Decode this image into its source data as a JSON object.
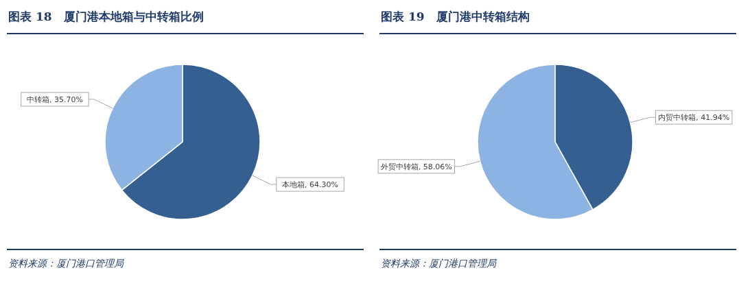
{
  "chart_data": [
    {
      "type": "pie",
      "title": "图表 18　厦门港本地箱与中转箱比例",
      "categories": [
        "本地箱",
        "中转箱"
      ],
      "values": [
        64.3,
        35.7
      ],
      "colors": [
        "#365f91",
        "#8db3e2"
      ],
      "value_labels": [
        "64.30%",
        "35.70%"
      ],
      "annotations": [
        "资料来源：厦门港口管理局"
      ]
    },
    {
      "type": "pie",
      "title": "图表 19　厦门港中转箱结构",
      "categories": [
        "内贸中转箱",
        "外贸中转箱"
      ],
      "values": [
        41.94,
        58.06
      ],
      "colors": [
        "#365f91",
        "#8db3e2"
      ],
      "value_labels": [
        "41.94%",
        "58.06%"
      ],
      "annotations": [
        "资料来源：厦门港口管理局"
      ]
    }
  ]
}
